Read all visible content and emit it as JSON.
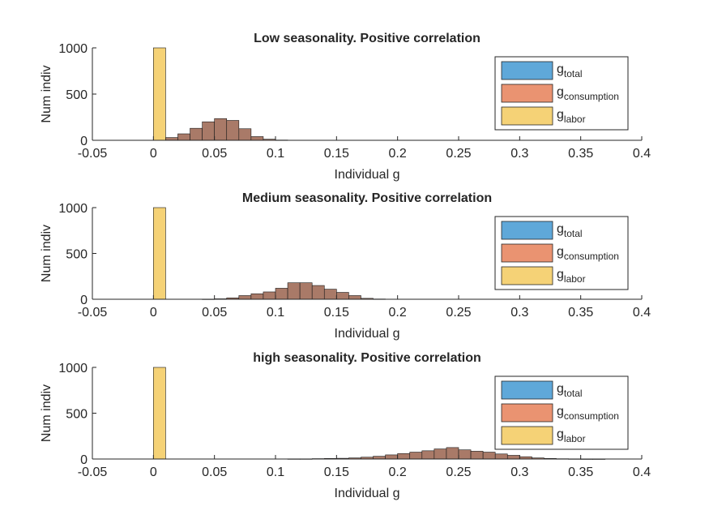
{
  "colors": {
    "total": "#5fa8d9",
    "consumption": "#ea9371",
    "labor": "#f5d276",
    "overlap": "#a97a68",
    "bar_edge": "#1a1a1a",
    "axis": "#262626"
  },
  "chart_data": [
    {
      "type": "bar",
      "title": "Low seasonality. Positive correlation",
      "xlabel": "Individual g",
      "ylabel": "Num indiv",
      "xlim": [
        -0.05,
        0.4
      ],
      "ylim": [
        0,
        1000
      ],
      "xticks": [
        "-0.05",
        "0",
        "0.05",
        "0.1",
        "0.15",
        "0.2",
        "0.25",
        "0.3",
        "0.35",
        "0.4"
      ],
      "yticks": [
        "0",
        "500",
        "1000"
      ],
      "legend_position": "top-right",
      "legend": [
        {
          "base": "g",
          "sub": "total"
        },
        {
          "base": "g",
          "sub": "consumption"
        },
        {
          "base": "g",
          "sub": "labor"
        }
      ],
      "bin_width": 0.01,
      "labor_bins": [
        {
          "x0": 0,
          "x1": 0.01,
          "count": 1000
        }
      ],
      "overlap_bins": [
        {
          "x0": 0.0,
          "x1": 0.01,
          "count": 5
        },
        {
          "x0": 0.01,
          "x1": 0.02,
          "count": 30
        },
        {
          "x0": 0.02,
          "x1": 0.03,
          "count": 70
        },
        {
          "x0": 0.03,
          "x1": 0.04,
          "count": 130
        },
        {
          "x0": 0.04,
          "x1": 0.05,
          "count": 200
        },
        {
          "x0": 0.05,
          "x1": 0.06,
          "count": 235
        },
        {
          "x0": 0.06,
          "x1": 0.07,
          "count": 215
        },
        {
          "x0": 0.07,
          "x1": 0.08,
          "count": 125
        },
        {
          "x0": 0.08,
          "x1": 0.09,
          "count": 40
        },
        {
          "x0": 0.09,
          "x1": 0.1,
          "count": 12
        },
        {
          "x0": 0.1,
          "x1": 0.11,
          "count": 3
        }
      ]
    },
    {
      "type": "bar",
      "title": "Medium seasonality. Positive correlation",
      "xlabel": "Individual g",
      "ylabel": "Num indiv",
      "xlim": [
        -0.05,
        0.4
      ],
      "ylim": [
        0,
        1000
      ],
      "xticks": [
        "-0.05",
        "0",
        "0.05",
        "0.1",
        "0.15",
        "0.2",
        "0.25",
        "0.3",
        "0.35",
        "0.4"
      ],
      "yticks": [
        "0",
        "500",
        "1000"
      ],
      "legend_position": "top-right",
      "legend": [
        {
          "base": "g",
          "sub": "total"
        },
        {
          "base": "g",
          "sub": "consumption"
        },
        {
          "base": "g",
          "sub": "labor"
        }
      ],
      "bin_width": 0.01,
      "labor_bins": [
        {
          "x0": 0,
          "x1": 0.01,
          "count": 1000
        }
      ],
      "overlap_bins": [
        {
          "x0": 0.04,
          "x1": 0.05,
          "count": 2
        },
        {
          "x0": 0.05,
          "x1": 0.06,
          "count": 5
        },
        {
          "x0": 0.06,
          "x1": 0.07,
          "count": 15
        },
        {
          "x0": 0.07,
          "x1": 0.08,
          "count": 40
        },
        {
          "x0": 0.08,
          "x1": 0.09,
          "count": 60
        },
        {
          "x0": 0.09,
          "x1": 0.1,
          "count": 80
        },
        {
          "x0": 0.1,
          "x1": 0.11,
          "count": 120
        },
        {
          "x0": 0.11,
          "x1": 0.12,
          "count": 180
        },
        {
          "x0": 0.12,
          "x1": 0.13,
          "count": 180
        },
        {
          "x0": 0.13,
          "x1": 0.14,
          "count": 150
        },
        {
          "x0": 0.14,
          "x1": 0.15,
          "count": 110
        },
        {
          "x0": 0.15,
          "x1": 0.16,
          "count": 75
        },
        {
          "x0": 0.16,
          "x1": 0.17,
          "count": 40
        },
        {
          "x0": 0.17,
          "x1": 0.18,
          "count": 10
        },
        {
          "x0": 0.18,
          "x1": 0.19,
          "count": 3
        }
      ]
    },
    {
      "type": "bar",
      "title": "high seasonality. Positive correlation",
      "xlabel": "Individual g",
      "ylabel": "Num indiv",
      "xlim": [
        -0.05,
        0.4
      ],
      "ylim": [
        0,
        1000
      ],
      "xticks": [
        "-0.05",
        "0",
        "0.05",
        "0.1",
        "0.15",
        "0.2",
        "0.25",
        "0.3",
        "0.35",
        "0.4"
      ],
      "yticks": [
        "0",
        "500",
        "1000"
      ],
      "legend_position": "top-right",
      "legend": [
        {
          "base": "g",
          "sub": "total"
        },
        {
          "base": "g",
          "sub": "consumption"
        },
        {
          "base": "g",
          "sub": "labor"
        }
      ],
      "bin_width": 0.01,
      "labor_bins": [
        {
          "x0": 0,
          "x1": 0.01,
          "count": 1000
        }
      ],
      "overlap_bins": [
        {
          "x0": 0.11,
          "x1": 0.12,
          "count": 2
        },
        {
          "x0": 0.12,
          "x1": 0.13,
          "count": 2
        },
        {
          "x0": 0.13,
          "x1": 0.14,
          "count": 4
        },
        {
          "x0": 0.14,
          "x1": 0.15,
          "count": 6
        },
        {
          "x0": 0.15,
          "x1": 0.16,
          "count": 8
        },
        {
          "x0": 0.16,
          "x1": 0.17,
          "count": 12
        },
        {
          "x0": 0.17,
          "x1": 0.18,
          "count": 20
        },
        {
          "x0": 0.18,
          "x1": 0.19,
          "count": 30
        },
        {
          "x0": 0.19,
          "x1": 0.2,
          "count": 45
        },
        {
          "x0": 0.2,
          "x1": 0.21,
          "count": 60
        },
        {
          "x0": 0.21,
          "x1": 0.22,
          "count": 75
        },
        {
          "x0": 0.22,
          "x1": 0.23,
          "count": 90
        },
        {
          "x0": 0.23,
          "x1": 0.24,
          "count": 110
        },
        {
          "x0": 0.24,
          "x1": 0.25,
          "count": 125
        },
        {
          "x0": 0.25,
          "x1": 0.26,
          "count": 100
        },
        {
          "x0": 0.26,
          "x1": 0.27,
          "count": 85
        },
        {
          "x0": 0.27,
          "x1": 0.28,
          "count": 75
        },
        {
          "x0": 0.28,
          "x1": 0.29,
          "count": 55
        },
        {
          "x0": 0.29,
          "x1": 0.3,
          "count": 40
        },
        {
          "x0": 0.3,
          "x1": 0.31,
          "count": 25
        },
        {
          "x0": 0.31,
          "x1": 0.32,
          "count": 12
        },
        {
          "x0": 0.32,
          "x1": 0.33,
          "count": 6
        },
        {
          "x0": 0.33,
          "x1": 0.34,
          "count": 3
        },
        {
          "x0": 0.34,
          "x1": 0.35,
          "count": 2
        },
        {
          "x0": 0.35,
          "x1": 0.36,
          "count": 1
        },
        {
          "x0": 0.36,
          "x1": 0.37,
          "count": 1
        }
      ]
    }
  ]
}
